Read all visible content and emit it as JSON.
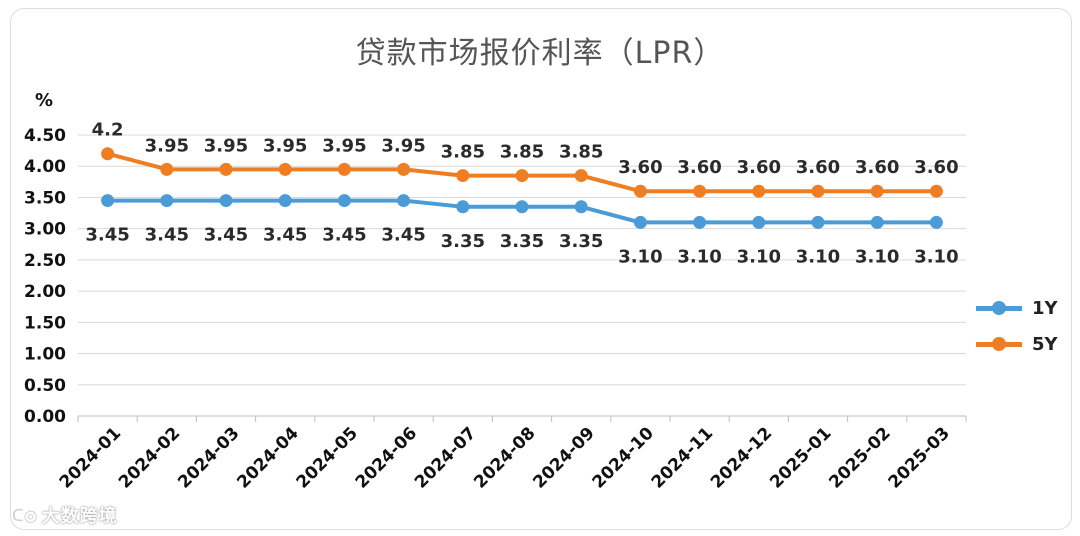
{
  "chart_data": {
    "type": "line",
    "title": "贷款市场报价利率（LPR）",
    "unit_label": "%",
    "categories": [
      "2024-01",
      "2024-02",
      "2024-03",
      "2024-04",
      "2024-05",
      "2024-06",
      "2024-07",
      "2024-08",
      "2024-09",
      "2024-10",
      "2024-11",
      "2024-12",
      "2025-01",
      "2025-02",
      "2025-03"
    ],
    "series": [
      {
        "name": "1Y",
        "color": "#4a9bd6",
        "values": [
          3.45,
          3.45,
          3.45,
          3.45,
          3.45,
          3.45,
          3.35,
          3.35,
          3.35,
          3.1,
          3.1,
          3.1,
          3.1,
          3.1,
          3.1
        ],
        "labels": [
          "3.45",
          "3.45",
          "3.45",
          "3.45",
          "3.45",
          "3.45",
          "3.35",
          "3.35",
          "3.35",
          "3.10",
          "3.10",
          "3.10",
          "3.10",
          "3.10",
          "3.10"
        ],
        "label_position": "below"
      },
      {
        "name": "5Y",
        "color": "#ef7d22",
        "values": [
          4.2,
          3.95,
          3.95,
          3.95,
          3.95,
          3.95,
          3.85,
          3.85,
          3.85,
          3.6,
          3.6,
          3.6,
          3.6,
          3.6,
          3.6
        ],
        "labels": [
          "4.2",
          "3.95",
          "3.95",
          "3.95",
          "3.95",
          "3.95",
          "3.85",
          "3.85",
          "3.85",
          "3.60",
          "3.60",
          "3.60",
          "3.60",
          "3.60",
          "3.60"
        ],
        "label_position": "above"
      }
    ],
    "ylim": [
      0,
      4.5
    ],
    "yticks": [
      "0.00",
      "0.50",
      "1.00",
      "1.50",
      "2.00",
      "2.50",
      "3.00",
      "3.50",
      "4.00",
      "4.50"
    ],
    "grid": true,
    "legend_position": "right"
  },
  "watermark": {
    "logo": "ᑕ◎",
    "text": "大数跨境"
  }
}
